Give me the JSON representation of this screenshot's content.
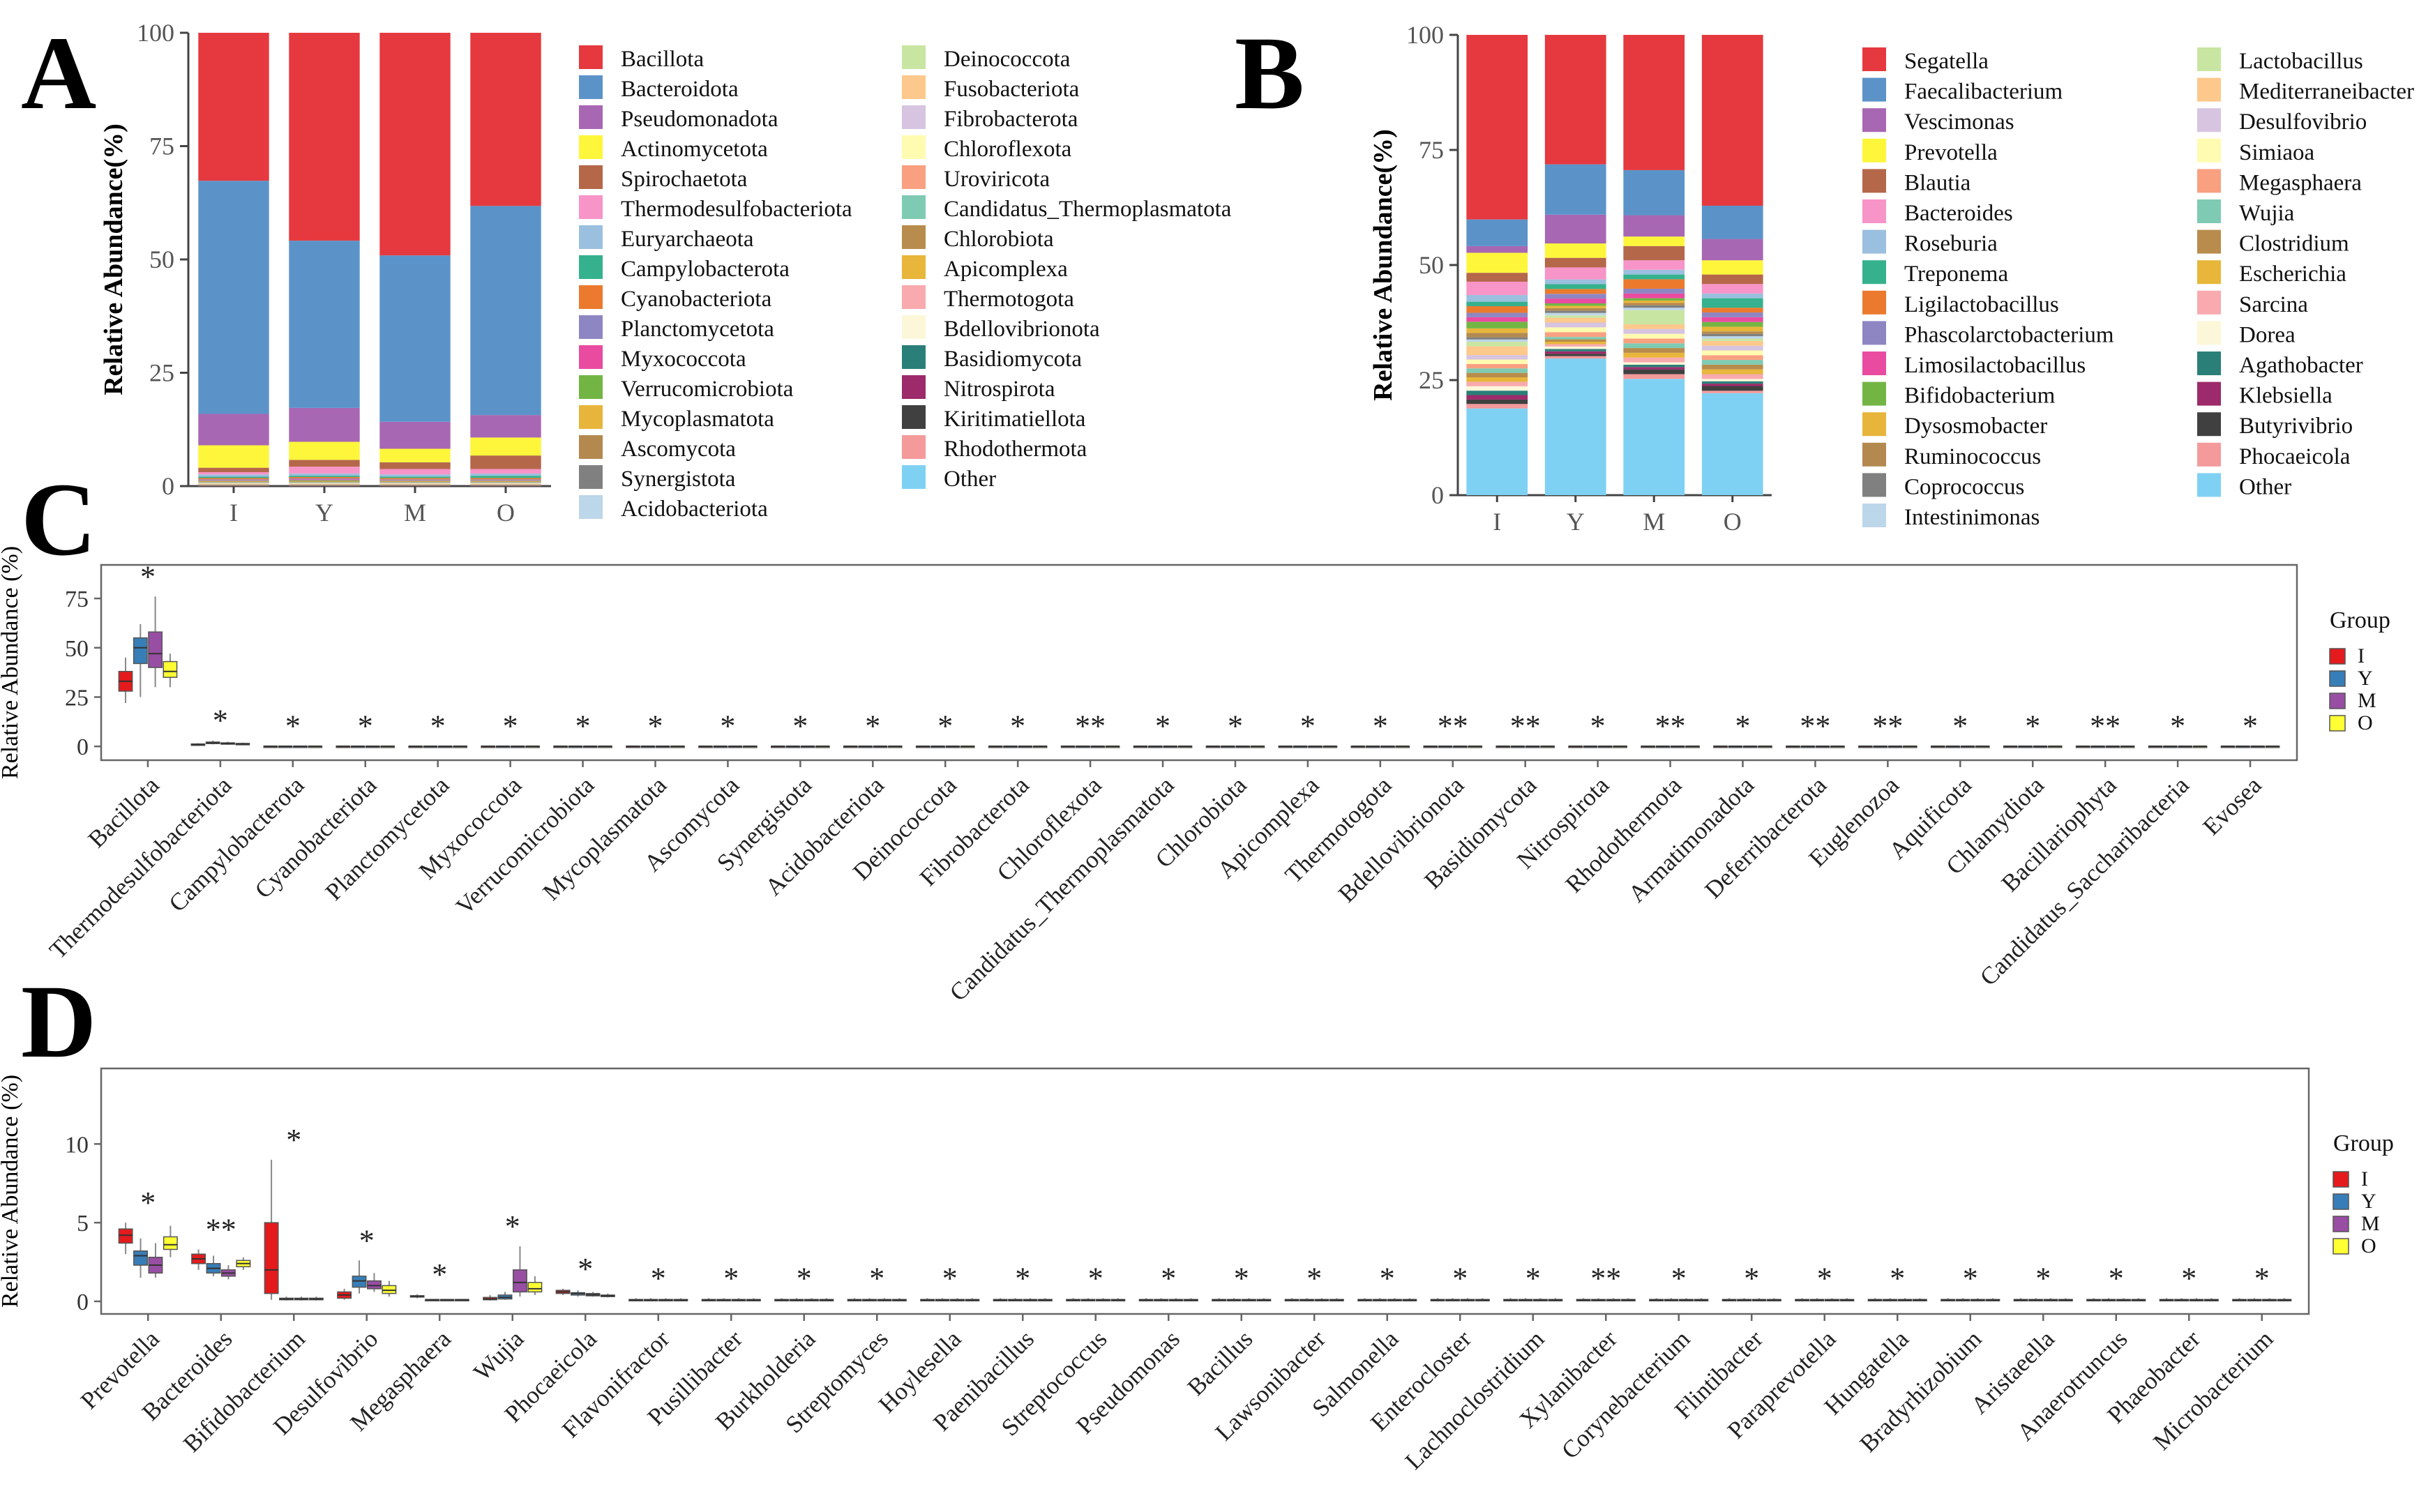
{
  "panel_labels": {
    "A": "A",
    "B": "B",
    "C": "C",
    "D": "D"
  },
  "colors": {
    "I": "#e41a1c",
    "Y": "#377eb8",
    "M": "#984ea3",
    "O": "#ffff33",
    "palette": [
      "#e5393f",
      "#5b93c9",
      "#a867b3",
      "#fdf63b",
      "#b5674a",
      "#f794c8",
      "#9bbfde",
      "#35b28d",
      "#eb7a2e",
      "#8e86c3",
      "#e94ba0",
      "#72b544",
      "#e7b53b",
      "#b3894f",
      "#808080",
      "#bcd6ea",
      "#c8e6a2",
      "#fdc88b",
      "#d6c4e0",
      "#fffbb0",
      "#f9a081",
      "#7fcab2",
      "#b88c4c",
      "#e8b63a",
      "#f8aaae",
      "#fbf7d8",
      "#2a7f78",
      "#9d2a6a",
      "#404040",
      "#f49a9a",
      "#7fd1f4"
    ]
  },
  "chart_data": [
    {
      "id": "A",
      "type": "bar",
      "stacked": true,
      "ylabel": "Relative Abundance(%)",
      "yticks": [
        "0",
        "25",
        "50",
        "75",
        "100"
      ],
      "ylim": [
        0,
        100
      ],
      "categories": [
        "I",
        "Y",
        "M",
        "O"
      ],
      "legend": [
        "Bacillota",
        "Bacteroidota",
        "Pseudomonadota",
        "Actinomycetota",
        "Spirochaetota",
        "Thermodesulfobacteriota",
        "Euryarchaeota",
        "Campylobacterota",
        "Cyanobacteriota",
        "Planctomycetota",
        "Myxococcota",
        "Verrucomicrobiota",
        "Mycoplasmatota",
        "Ascomycota",
        "Synergistota",
        "Acidobacteriota",
        "Deinococcota",
        "Fusobacteriota",
        "Fibrobacterota",
        "Chloroflexota",
        "Uroviricota",
        "Candidatus_Thermoplasmatota",
        "Chlorobiota",
        "Apicomplexa",
        "Thermotogota",
        "Bdellovibrionota",
        "Basidiomycota",
        "Nitrospirota",
        "Kiritimatiellota",
        "Rhodothermota",
        "Other"
      ],
      "series_values": {
        "I": [
          33,
          52,
          7,
          5,
          1,
          0.5,
          0.5,
          0.3,
          0.3,
          0.2,
          0.1,
          0.1,
          0.1,
          0.1,
          0.1,
          0.1,
          0.05,
          0.05,
          0.05,
          0.05,
          0.05,
          0.05,
          0.05,
          0.05,
          0.05,
          0.05,
          0.05,
          0.05,
          0.05,
          0.05,
          0.0
        ],
        "Y": [
          46,
          37,
          7.5,
          4,
          1.5,
          1.5,
          0.5,
          0.3,
          0.3,
          0.2,
          0.2,
          0.2,
          0.1,
          0.1,
          0.1,
          0.1,
          0.05,
          0.05,
          0.05,
          0.05,
          0.05,
          0.05,
          0.05,
          0.05,
          0.05,
          0.05,
          0.05,
          0.05,
          0.05,
          0.05,
          0.0
        ],
        "M": [
          49.5,
          37,
          6,
          3,
          1.5,
          1.2,
          0.5,
          0.3,
          0.3,
          0.2,
          0.1,
          0.1,
          0.1,
          0.1,
          0.1,
          0.1,
          0.05,
          0.05,
          0.05,
          0.05,
          0.05,
          0.05,
          0.05,
          0.05,
          0.05,
          0.05,
          0.05,
          0.05,
          0.05,
          0.05,
          0.0
        ],
        "O": [
          38.5,
          46.5,
          5,
          4,
          3,
          1,
          0.5,
          0.5,
          0.3,
          0.2,
          0.1,
          0.1,
          0.1,
          0.1,
          0.1,
          0.1,
          0.05,
          0.05,
          0.05,
          0.05,
          0.05,
          0.05,
          0.05,
          0.05,
          0.05,
          0.05,
          0.05,
          0.05,
          0.05,
          0.05,
          0.0
        ]
      }
    },
    {
      "id": "B",
      "type": "bar",
      "stacked": true,
      "ylabel": "Relative Abundance(%)",
      "yticks": [
        "0",
        "25",
        "50",
        "75",
        "100"
      ],
      "ylim": [
        0,
        100
      ],
      "categories": [
        "I",
        "Y",
        "M",
        "O"
      ],
      "legend": [
        "Segatella",
        "Faecalibacterium",
        "Vescimonas",
        "Prevotella",
        "Blautia",
        "Bacteroides",
        "Roseburia",
        "Treponema",
        "Ligilactobacillus",
        "Phascolarctobacterium",
        "Limosilactobacillus",
        "Bifidobacterium",
        "Dysosmobacter",
        "Ruminococcus",
        "Coprococcus",
        "Intestinimonas",
        "Lactobacillus",
        "Mediterraneibacter",
        "Desulfovibrio",
        "Simiaoa",
        "Megasphaera",
        "Wujia",
        "Clostridium",
        "Escherichia",
        "Sarcina",
        "Dorea",
        "Agathobacter",
        "Klebsiella",
        "Butyrivibrio",
        "Phocaeicola",
        "Other"
      ],
      "series_values": {
        "I": [
          41.5,
          6,
          1.5,
          4.5,
          2,
          3,
          1.5,
          1,
          1.5,
          1,
          1,
          1.5,
          1,
          1,
          0.5,
          0.5,
          1,
          2,
          1,
          1,
          1,
          1,
          1,
          1,
          1,
          1,
          1,
          1,
          1,
          1,
          19.5
        ],
        "Y": [
          27,
          10.5,
          6,
          3,
          2,
          2.5,
          1,
          1,
          1,
          1,
          1,
          0.5,
          0.5,
          0.5,
          0.5,
          0.5,
          0.5,
          1,
          1,
          1,
          1,
          0.5,
          0.5,
          0.5,
          0.5,
          0.5,
          0.5,
          0.5,
          0.5,
          0.5,
          28.5
        ],
        "M": [
          28.5,
          9.5,
          4.5,
          2,
          3,
          2,
          1,
          1,
          2,
          1,
          1,
          0.5,
          0.5,
          0.5,
          0.5,
          0.5,
          3,
          1,
          1,
          1,
          1,
          1,
          1,
          1,
          1,
          0.5,
          0.5,
          0.5,
          1,
          1,
          24.5
        ],
        "O": [
          36,
          7,
          4.5,
          3,
          2,
          2,
          1,
          2,
          1,
          1,
          1,
          1,
          1,
          0.5,
          0.5,
          0.5,
          0.5,
          1,
          1,
          1,
          1,
          1,
          1,
          1,
          1,
          0.5,
          0.5,
          0.5,
          1,
          0.5,
          21.5
        ]
      }
    },
    {
      "id": "C",
      "type": "box",
      "ylabel": "Relative Abundance (%)",
      "yticks": [
        "0",
        "25",
        "50",
        "75"
      ],
      "ylim": [
        -7,
        92
      ],
      "legend_title": "Group",
      "groups": [
        "I",
        "Y",
        "M",
        "O"
      ],
      "categories": [
        "Bacillota",
        "Thermodesulfobacteriota",
        "Campylobacterota",
        "Cyanobacteriota",
        "Planctomycetota",
        "Myxococcota",
        "Verrucomicrobiota",
        "Mycoplasmatota",
        "Ascomycota",
        "Synergistota",
        "Acidobacteriota",
        "Deinococcota",
        "Fibrobacterota",
        "Chloroflexota",
        "Candidatus_Thermoplasmatota",
        "Chlorobiota",
        "Apicomplexa",
        "Thermotogota",
        "Bdellovibrionota",
        "Basidiomycota",
        "Nitrospirota",
        "Rhodothermota",
        "Armatimonadota",
        "Deferribacterota",
        "Euglenozoa",
        "Aquificota",
        "Chlamydiota",
        "Bacillariophyta",
        "Candidatus_Saccharibacteria",
        "Evosea"
      ],
      "significance": [
        "*",
        "*",
        "*",
        "*",
        "*",
        "*",
        "*",
        "*",
        "*",
        "*",
        "*",
        "*",
        "*",
        "**",
        "*",
        "*",
        "*",
        "*",
        "**",
        "**",
        "*",
        "**",
        "*",
        "**",
        "**",
        "*",
        "*",
        "**",
        "*",
        "*"
      ],
      "boxes": [
        {
          "I": [
            22,
            28,
            33,
            38,
            45
          ],
          "Y": [
            25,
            42,
            50,
            55,
            62
          ],
          "M": [
            30,
            40,
            47,
            58,
            76
          ],
          "O": [
            30,
            35,
            38,
            43,
            47
          ]
        },
        {
          "I": [
            0.5,
            0.8,
            1,
            1.2,
            1.6
          ],
          "Y": [
            1,
            1.4,
            1.8,
            2.2,
            3
          ],
          "M": [
            0.8,
            1.2,
            1.5,
            1.8,
            2.4
          ],
          "O": [
            0.6,
            1,
            1.2,
            1.5,
            1.9
          ]
        }
      ]
    },
    {
      "id": "D",
      "type": "box",
      "ylabel": "Relative Abundance (%)",
      "yticks": [
        "0",
        "5",
        "10"
      ],
      "ylim": [
        -0.8,
        14.8
      ],
      "legend_title": "Group",
      "groups": [
        "I",
        "Y",
        "M",
        "O"
      ],
      "categories": [
        "Prevotella",
        "Bacteroides",
        "Bifidobacterium",
        "Desulfovibrio",
        "Megasphaera",
        "Wujia",
        "Phocaeicola",
        "Flavonifractor",
        "Pusillibacter",
        "Burkholderia",
        "Streptomyces",
        "Hoylesella",
        "Paenibacillus",
        "Streptococcus",
        "Pseudomonas",
        "Bacillus",
        "Lawsonibacter",
        "Salmonella",
        "Enterocloster",
        "Lachnoclostridium",
        "Xylanibacter",
        "Corynebacterium",
        "Flintibacter",
        "Paraprevotella",
        "Hungatella",
        "Bradyrhizobium",
        "Aristaeella",
        "Anaerotruncus",
        "Phaeobacter",
        "Microbacterium"
      ],
      "significance": [
        "*",
        "**",
        "*",
        "*",
        "*",
        "*",
        "*",
        "*",
        "*",
        "*",
        "*",
        "*",
        "*",
        "*",
        "*",
        "*",
        "*",
        "*",
        "*",
        "*",
        "**",
        "*",
        "*",
        "*",
        "*",
        "*",
        "*",
        "*",
        "*",
        "*"
      ],
      "boxes": [
        {
          "I": [
            3.0,
            3.7,
            4.2,
            4.6,
            5.0
          ],
          "Y": [
            1.5,
            2.3,
            2.9,
            3.2,
            4.0
          ],
          "M": [
            1.5,
            1.8,
            2.3,
            2.8,
            3.7
          ],
          "O": [
            2.8,
            3.3,
            3.6,
            4.1,
            4.8
          ]
        },
        {
          "I": [
            2.0,
            2.4,
            2.7,
            3.0,
            3.3
          ],
          "Y": [
            1.6,
            1.8,
            2.1,
            2.4,
            2.9
          ],
          "M": [
            1.4,
            1.6,
            1.8,
            2.0,
            2.3
          ],
          "O": [
            2.0,
            2.2,
            2.4,
            2.6,
            2.8
          ]
        },
        {
          "I": [
            0.1,
            0.5,
            2.0,
            5.0,
            9.0
          ],
          "Y": [
            0.05,
            0.1,
            0.15,
            0.2,
            0.3
          ],
          "M": [
            0.05,
            0.1,
            0.15,
            0.2,
            0.3
          ],
          "O": [
            0.05,
            0.1,
            0.15,
            0.2,
            0.3
          ]
        },
        {
          "I": [
            0.1,
            0.2,
            0.4,
            0.6,
            0.8
          ],
          "Y": [
            0.5,
            0.9,
            1.3,
            1.6,
            2.6
          ],
          "M": [
            0.6,
            0.8,
            1.0,
            1.3,
            1.8
          ],
          "O": [
            0.3,
            0.5,
            0.7,
            1.0,
            1.3
          ]
        },
        {
          "I": [
            0.2,
            0.28,
            0.32,
            0.36,
            0.45
          ],
          "Y": [
            0.05,
            0.08,
            0.1,
            0.12,
            0.15
          ],
          "M": [
            0.05,
            0.08,
            0.1,
            0.12,
            0.15
          ],
          "O": [
            0.05,
            0.08,
            0.1,
            0.12,
            0.15
          ]
        },
        {
          "I": [
            0.05,
            0.1,
            0.15,
            0.25,
            0.4
          ],
          "Y": [
            0.1,
            0.15,
            0.25,
            0.4,
            0.6
          ],
          "M": [
            0.3,
            0.6,
            1.2,
            2.0,
            3.5
          ],
          "O": [
            0.4,
            0.6,
            0.8,
            1.2,
            1.6
          ]
        },
        {
          "I": [
            0.4,
            0.5,
            0.6,
            0.7,
            0.8
          ],
          "Y": [
            0.3,
            0.4,
            0.5,
            0.55,
            0.7
          ],
          "M": [
            0.3,
            0.35,
            0.42,
            0.5,
            0.6
          ],
          "O": [
            0.25,
            0.3,
            0.35,
            0.4,
            0.5
          ]
        }
      ]
    }
  ]
}
